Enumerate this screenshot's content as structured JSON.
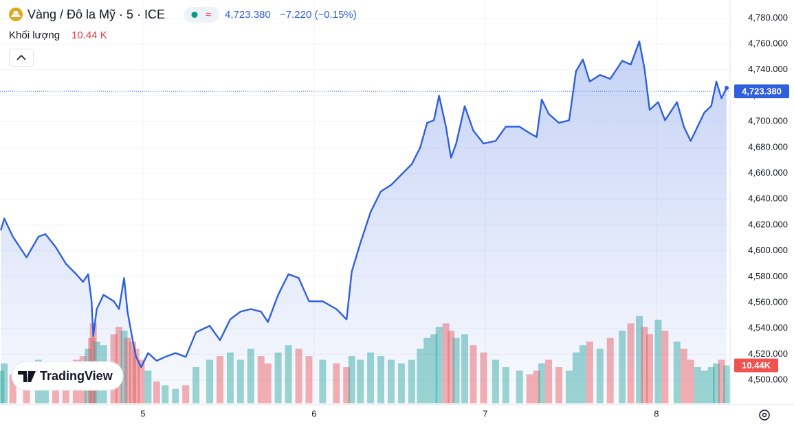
{
  "chart_data": {
    "type": "line",
    "title": "Vàng / Đô la Mỹ · 5 · ICE",
    "marker": "≈",
    "last_price_label": "4,723.380",
    "last_price": 4723.38,
    "change": "−7.220 (−0.15%)",
    "volume_name": "Khối lượng",
    "volume_label": "10.44 K",
    "last_volume": 10.44,
    "volume_badge": "10.44K",
    "logo": "TradingView",
    "color": "#2f5fdc",
    "volume_colors": {
      "up": "#26a69a",
      "down": "#ef5350"
    },
    "grid": true,
    "xlim": [
      4.165,
      8.43
    ],
    "xticks": [
      5,
      6,
      7,
      8
    ],
    "ylim": [
      4481,
      4794
    ],
    "yticks": [
      {
        "value": 4500,
        "label": "4,500.000"
      },
      {
        "value": 4520,
        "label": "4,520.000"
      },
      {
        "value": 4540,
        "label": "4,540.000"
      },
      {
        "value": 4560,
        "label": "4,560.000"
      },
      {
        "value": 4580,
        "label": "4,580.000"
      },
      {
        "value": 4600,
        "label": "4,600.000"
      },
      {
        "value": 4620,
        "label": "4,620.000"
      },
      {
        "value": 4640,
        "label": "4,640.000"
      },
      {
        "value": 4660,
        "label": "4,660.000"
      },
      {
        "value": 4680,
        "label": "4,680.000"
      },
      {
        "value": 4700,
        "label": "4,700.000"
      },
      {
        "value": 4720,
        "label": "4,720.000"
      },
      {
        "value": 4740,
        "label": "4,740.000"
      },
      {
        "value": 4760,
        "label": "4,760.000"
      },
      {
        "value": 4780,
        "label": "4,780.000"
      }
    ],
    "x": [
      4.17,
      4.19,
      4.24,
      4.32,
      4.39,
      4.43,
      4.49,
      4.55,
      4.61,
      4.65,
      4.68,
      4.7,
      4.71,
      4.73,
      4.77,
      4.83,
      4.86,
      4.89,
      4.91,
      4.94,
      4.96,
      4.99,
      5.03,
      5.08,
      5.13,
      5.19,
      5.25,
      5.31,
      5.39,
      5.45,
      5.51,
      5.57,
      5.63,
      5.69,
      5.73,
      5.79,
      5.85,
      5.91,
      5.97,
      6.05,
      6.13,
      6.19,
      6.22,
      6.27,
      6.33,
      6.39,
      6.45,
      6.51,
      6.57,
      6.62,
      6.66,
      6.7,
      6.73,
      6.77,
      6.8,
      6.83,
      6.88,
      6.93,
      6.99,
      7.06,
      7.12,
      7.2,
      7.26,
      7.3,
      7.33,
      7.37,
      7.43,
      7.49,
      7.53,
      7.57,
      7.61,
      7.67,
      7.73,
      7.8,
      7.85,
      7.9,
      7.93,
      7.96,
      8.01,
      8.05,
      8.12,
      8.16,
      8.2,
      8.24,
      8.28,
      8.32,
      8.35,
      8.38,
      8.41
    ],
    "values": [
      4616,
      4625,
      4611,
      4595,
      4611,
      4613,
      4603,
      4590,
      4582,
      4576,
      4582,
      4561,
      4534,
      4555,
      4566,
      4561,
      4555,
      4579,
      4553,
      4531,
      4518,
      4510,
      4521,
      4515,
      4518,
      4521,
      4518,
      4537,
      4542,
      4531,
      4547,
      4553,
      4555,
      4553,
      4545,
      4566,
      4582,
      4579,
      4561,
      4561,
      4555,
      4547,
      4584,
      4606,
      4630,
      4646,
      4651,
      4659,
      4667,
      4680,
      4699,
      4701,
      4720,
      4696,
      4672,
      4683,
      4712,
      4693,
      4683,
      4685,
      4696,
      4696,
      4691,
      4688,
      4717,
      4706,
      4699,
      4701,
      4739,
      4748,
      4731,
      4736,
      4733,
      4747,
      4744,
      4762,
      4741,
      4709,
      4715,
      4701,
      4715,
      4696,
      4685,
      4696,
      4707,
      4712,
      4731,
      4718,
      4726
    ],
    "volume": [
      9,
      11,
      8,
      10,
      12,
      9,
      11,
      10,
      12,
      13,
      15,
      18,
      22,
      17,
      16,
      19,
      21,
      20,
      18,
      17,
      15,
      12,
      9,
      6,
      5,
      4,
      5,
      10,
      12,
      13,
      14,
      12,
      15,
      13,
      11,
      14,
      16,
      15,
      13,
      12,
      11,
      10,
      13,
      12,
      14,
      13,
      12,
      11,
      12,
      15,
      18,
      19,
      21,
      22,
      20,
      18,
      19,
      16,
      14,
      12,
      10,
      9,
      8,
      9,
      11,
      12,
      10,
      9,
      14,
      16,
      17,
      15,
      18,
      20,
      22,
      24,
      21,
      19,
      23,
      20,
      17,
      15,
      12,
      10,
      9,
      10,
      11,
      12,
      10.44
    ]
  }
}
